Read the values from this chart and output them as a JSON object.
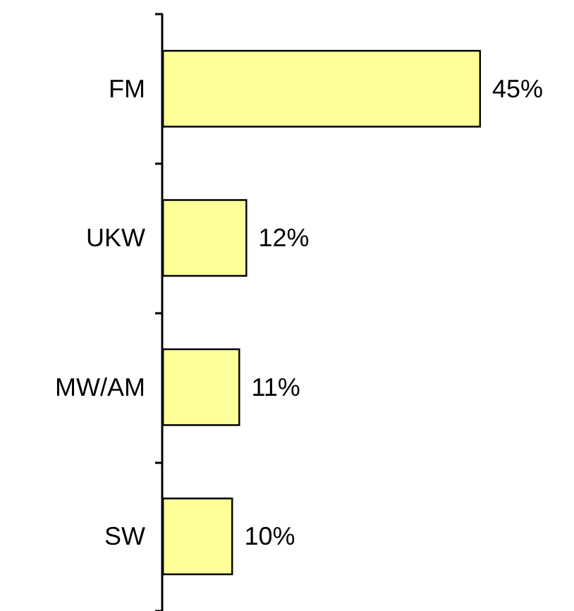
{
  "chart_data": {
    "type": "bar",
    "orientation": "horizontal",
    "categories": [
      "FM",
      "UKW",
      "MW/AM",
      "SW"
    ],
    "values": [
      45,
      12,
      11,
      10
    ],
    "value_labels": [
      "45%",
      "12%",
      "11%",
      "10%"
    ],
    "color": "#ffff99"
  }
}
